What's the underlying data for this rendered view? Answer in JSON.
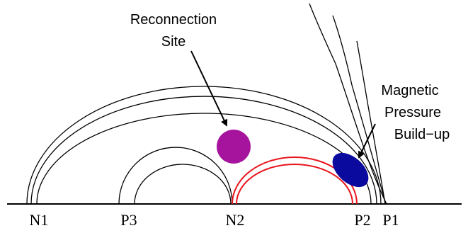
{
  "annotations": {
    "reconnection_line1": "Reconnection",
    "reconnection_line2": "Site",
    "pressure_line1": "Magnetic",
    "pressure_line2": "Pressure",
    "pressure_line3": "Build−up"
  },
  "footpoints": {
    "n1": "N1",
    "p3": "P3",
    "n2": "N2",
    "p2": "P2",
    "p1": "P1"
  },
  "colors": {
    "field_lines": "#000000",
    "red_arcs": "#e8141c",
    "reconnection_site": "#a6149e",
    "pressure_blob": "#0b0a9e"
  }
}
